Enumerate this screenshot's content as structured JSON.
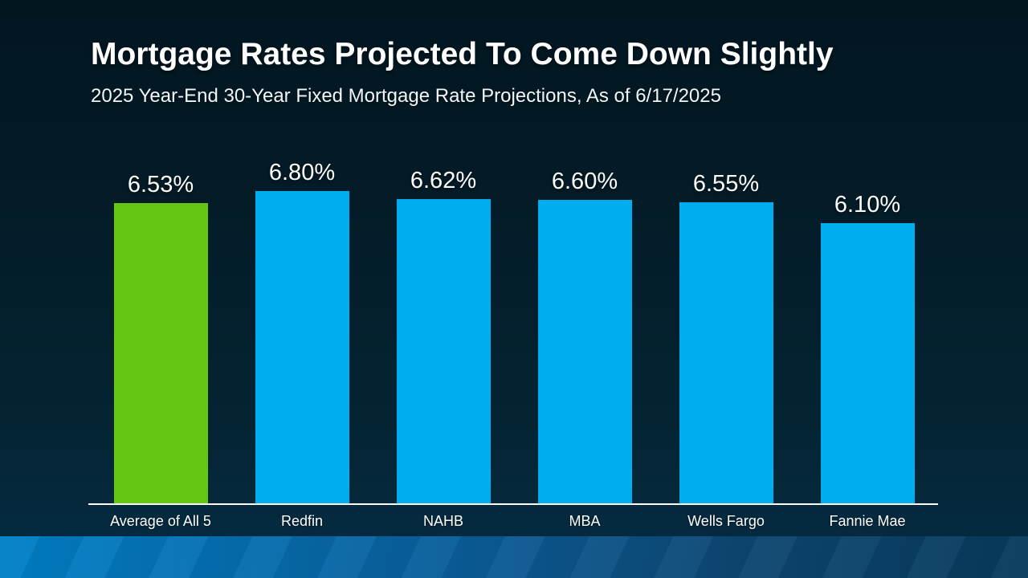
{
  "slide": {
    "title": "Mortgage Rates Projected To Come Down Slightly",
    "subtitle": "2025 Year-End 30-Year Fixed Mortgage Rate Projections, As of 6/17/2025"
  },
  "chart_data": {
    "type": "bar",
    "categories": [
      "Average of All 5",
      "Redfin",
      "NAHB",
      "MBA",
      "Wells Fargo",
      "Fannie Mae"
    ],
    "values": [
      6.53,
      6.8,
      6.62,
      6.6,
      6.55,
      6.1
    ],
    "value_labels": [
      "6.53%",
      "6.80%",
      "6.62%",
      "6.60%",
      "6.55%",
      "6.10%"
    ],
    "bar_colors": [
      "#63C713",
      "#00ADEF",
      "#00ADEF",
      "#00ADEF",
      "#00ADEF",
      "#00ADEF"
    ],
    "title": "",
    "xlabel": "",
    "ylabel": "",
    "ylim": [
      0,
      6.8
    ],
    "grid": false,
    "legend": "none",
    "data_labels": "above-bars",
    "baseline_axis_color": "#FFFFFF"
  },
  "colors": {
    "background_top": "#021620",
    "background_bottom": "#062B40",
    "highlight_green": "#63C713",
    "primary_blue": "#00ADEF",
    "strip_gradient_left": "#0080C8",
    "strip_gradient_right": "#073A5C",
    "text": "#FFFFFF"
  }
}
